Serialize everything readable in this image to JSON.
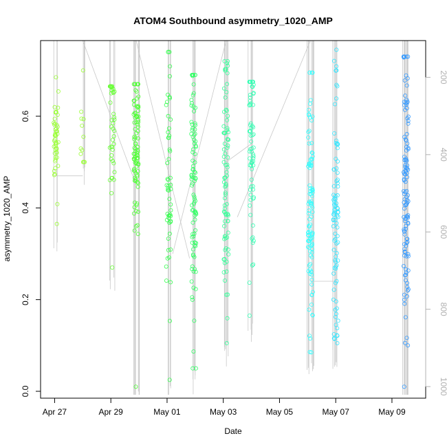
{
  "chart_data": {
    "type": "scatter",
    "title": "ATOM4 Southbound asymmetry_1020_AMP",
    "xlabel": "Date",
    "ylabel": "asymmetry_1020_AMP",
    "x_ticks": [
      "Apr 27",
      "Apr 29",
      "May 01",
      "May 03",
      "May 05",
      "May 07",
      "May 09"
    ],
    "x_tick_days": [
      0,
      2,
      4,
      6,
      8,
      10,
      12
    ],
    "xlim_days": [
      -0.5,
      13.2
    ],
    "y_ticks": [
      0.0,
      0.2,
      0.4,
      0.6
    ],
    "ylim": [
      -0.015,
      0.765
    ],
    "right_axis_ticks": [
      200,
      400,
      600,
      800,
      1000
    ],
    "right_axis_lim": [
      105,
      1030
    ],
    "grid": false,
    "legend": "none",
    "clusters": [
      {
        "day": 0.05,
        "n": 48,
        "ymin": 0.365,
        "ymax": 0.685,
        "center": 0.54,
        "spread": 0.05,
        "color": "#99ff33"
      },
      {
        "day": 1.0,
        "n": 12,
        "ymin": 0.5,
        "ymax": 0.7,
        "center": 0.58,
        "spread": 0.05,
        "color": "#99ff33"
      },
      {
        "day": 2.05,
        "n": 42,
        "ymin": 0.27,
        "ymax": 0.665,
        "center": 0.57,
        "spread": 0.08,
        "color": "#66ff33"
      },
      {
        "day": 2.9,
        "n": 95,
        "ymin": 0.01,
        "ymax": 0.67,
        "center": 0.55,
        "spread": 0.09,
        "color": "#4dff33"
      },
      {
        "day": 4.05,
        "n": 55,
        "ymin": 0.025,
        "ymax": 0.74,
        "center": 0.5,
        "spread": 0.12,
        "color": "#33ff4d"
      },
      {
        "day": 4.95,
        "n": 100,
        "ymin": 0.05,
        "ymax": 0.69,
        "center": 0.45,
        "spread": 0.16,
        "color": "#33ff66"
      },
      {
        "day": 6.1,
        "n": 85,
        "ymin": 0.105,
        "ymax": 0.72,
        "center": 0.45,
        "spread": 0.15,
        "color": "#33ff99"
      },
      {
        "day": 7.0,
        "n": 70,
        "ymin": 0.165,
        "ymax": 0.675,
        "center": 0.5,
        "spread": 0.13,
        "color": "#33ffb3"
      },
      {
        "day": 9.1,
        "n": 105,
        "ymin": 0.085,
        "ymax": 0.695,
        "center": 0.4,
        "spread": 0.15,
        "color": "#33ffff"
      },
      {
        "day": 10.0,
        "n": 90,
        "ymin": 0.105,
        "ymax": 0.745,
        "center": 0.38,
        "spread": 0.15,
        "color": "#33e6ff"
      },
      {
        "day": 12.5,
        "n": 120,
        "ymin": 0.01,
        "ymax": 0.73,
        "center": 0.45,
        "spread": 0.14,
        "color": "#3399ff"
      }
    ],
    "depth_line_color": "#c8c8c8",
    "point_stroke_width": 0.8
  }
}
